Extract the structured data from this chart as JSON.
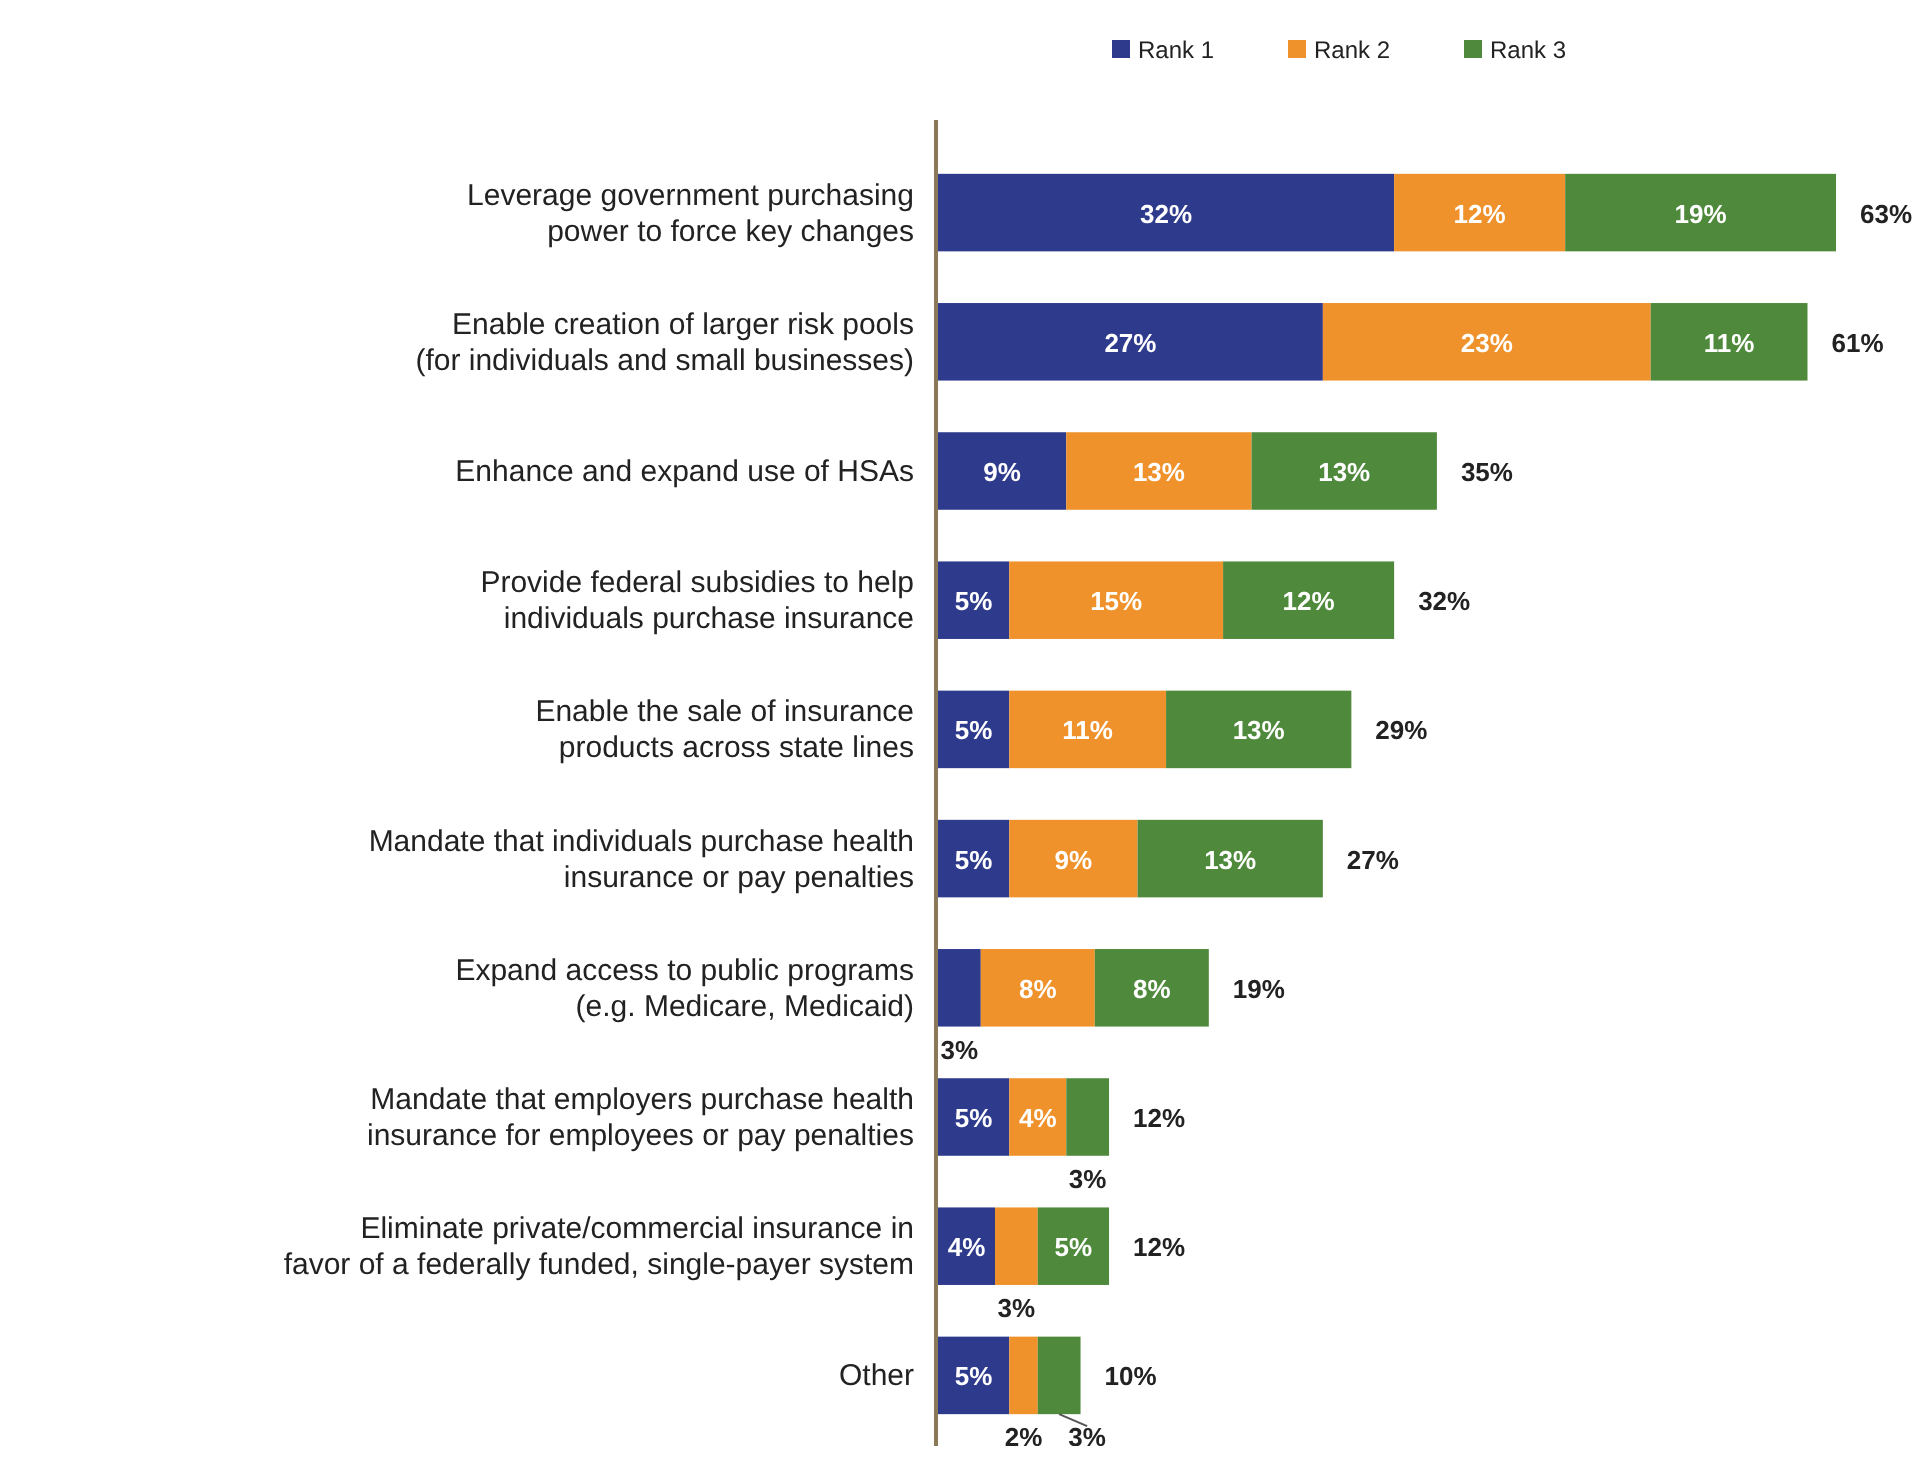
{
  "chart_data": {
    "type": "bar",
    "orientation": "horizontal",
    "stacked": true,
    "legend": "top",
    "categories": [
      "Leverage government purchasing\npower to force key changes",
      "Enable creation of larger risk pools\n(for individuals and small businesses)",
      "Enhance and expand use of HSAs",
      "Provide federal subsidies to help\nindividuals purchase insurance",
      "Enable the sale of insurance\nproducts across state lines",
      "Mandate that individuals purchase health\ninsurance or pay penalties",
      "Expand access to public programs\n(e.g. Medicare, Medicaid)",
      "Mandate that employers purchase health\ninsurance for employees or pay penalties",
      "Eliminate private/commercial insurance in\nfavor of a federally funded, single-payer system",
      "Other"
    ],
    "series": [
      {
        "name": "Rank 1",
        "color": "#2e3a8c",
        "values": [
          32,
          27,
          9,
          5,
          5,
          5,
          3,
          5,
          4,
          5
        ],
        "value_labels": [
          "32%",
          "27%",
          "9%",
          "5%",
          "5%",
          "5%",
          "3%",
          "5%",
          "4%",
          "5%"
        ]
      },
      {
        "name": "Rank 2",
        "color": "#f0922b",
        "values": [
          12,
          23,
          13,
          15,
          11,
          9,
          8,
          4,
          3,
          2
        ],
        "value_labels": [
          "12%",
          "23%",
          "13%",
          "15%",
          "11%",
          "9%",
          "8%",
          "4%",
          "3%",
          "2%"
        ]
      },
      {
        "name": "Rank 3",
        "color": "#4f8a3c",
        "values": [
          19,
          11,
          13,
          12,
          13,
          13,
          8,
          3,
          5,
          3
        ],
        "value_labels": [
          "19%",
          "11%",
          "13%",
          "12%",
          "13%",
          "13%",
          "8%",
          "3%",
          "5%",
          "3%"
        ]
      }
    ],
    "totals": [
      "63%",
      "61%",
      "35%",
      "32%",
      "29%",
      "27%",
      "19%",
      "12%",
      "12%",
      "10%"
    ]
  }
}
